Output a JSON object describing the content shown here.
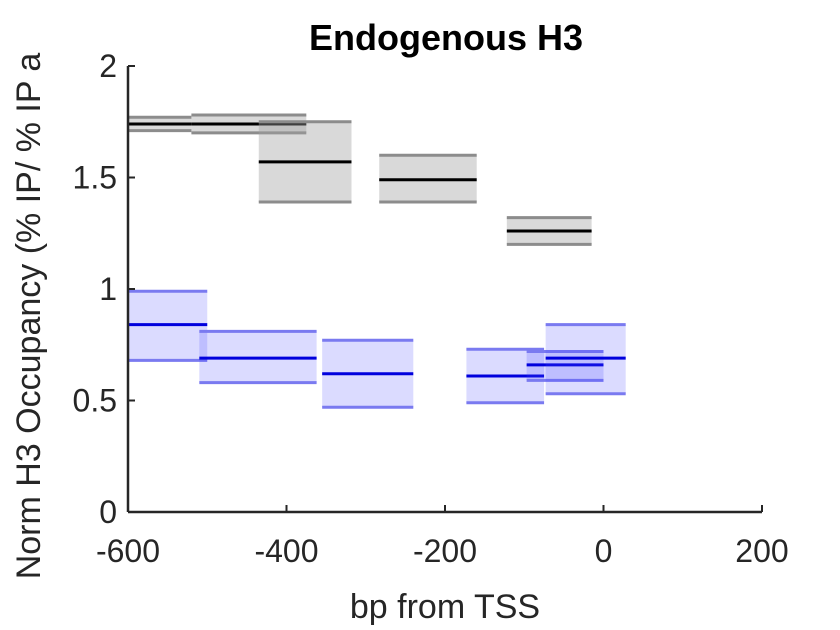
{
  "chart_data": {
    "type": "box-range",
    "title": "Endogenous H3",
    "xlabel": "bp from TSS",
    "ylabel": "Norm H3 Occupancy (% IP/ % IP a",
    "xlim": [
      -600,
      200
    ],
    "ylim": [
      0,
      2
    ],
    "xticks": [
      "-600",
      "-400",
      "-200",
      "0",
      "200"
    ],
    "yticks": [
      "0",
      "0.5",
      "1",
      "1.5",
      "2"
    ],
    "grid": false,
    "colors": {
      "black_series": "#000000",
      "blue_series": "#0000dd"
    },
    "series": [
      {
        "color": "black",
        "boxes": [
          {
            "x0": -600,
            "x1": -520,
            "low": 1.71,
            "mid": 1.74,
            "high": 1.77
          },
          {
            "x0": -520,
            "x1": -375,
            "low": 1.7,
            "mid": 1.74,
            "high": 1.78
          },
          {
            "x0": -435,
            "x1": -318,
            "low": 1.39,
            "mid": 1.57,
            "high": 1.75
          },
          {
            "x0": -283,
            "x1": -160,
            "low": 1.39,
            "mid": 1.49,
            "high": 1.6
          },
          {
            "x0": -122,
            "x1": -15,
            "low": 1.2,
            "mid": 1.26,
            "high": 1.32
          }
        ]
      },
      {
        "color": "blue",
        "boxes": [
          {
            "x0": -600,
            "x1": -500,
            "low": 0.68,
            "mid": 0.84,
            "high": 0.99
          },
          {
            "x0": -510,
            "x1": -362,
            "low": 0.58,
            "mid": 0.69,
            "high": 0.81
          },
          {
            "x0": -355,
            "x1": -240,
            "low": 0.47,
            "mid": 0.62,
            "high": 0.77
          },
          {
            "x0": -173,
            "x1": -75,
            "low": 0.49,
            "mid": 0.61,
            "high": 0.73
          },
          {
            "x0": -97,
            "x1": 0,
            "low": 0.59,
            "mid": 0.66,
            "high": 0.72
          },
          {
            "x0": -73,
            "x1": 28,
            "low": 0.53,
            "mid": 0.69,
            "high": 0.84
          }
        ]
      }
    ]
  }
}
